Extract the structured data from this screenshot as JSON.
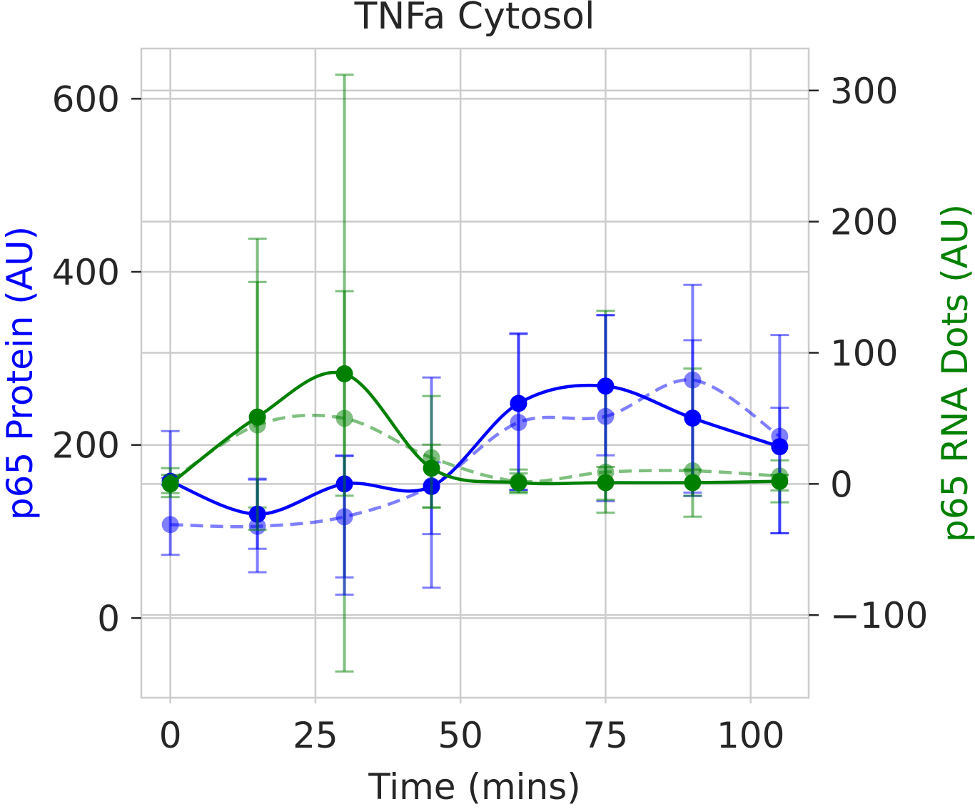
{
  "chart_data": {
    "type": "line",
    "title": "TNFa Cytosol",
    "xlabel": "Time (mins)",
    "ylabel_left": "p65 Protein (AU)",
    "ylabel_right": "p65 RNA Dots (AU)",
    "xlim": [
      -5,
      110
    ],
    "ylim_left": [
      -92,
      658
    ],
    "ylim_right": [
      -163,
      332
    ],
    "x_ticks": [
      0,
      25,
      50,
      75,
      100
    ],
    "y_ticks_left": [
      0,
      200,
      400,
      600
    ],
    "y_ticks_right": [
      -100,
      0,
      100,
      200,
      300
    ],
    "y_tick_labels_right": [
      "−100",
      "0",
      "100",
      "200",
      "300"
    ],
    "grid": true,
    "colors": {
      "protein": "#0000ff",
      "rna": "#008000",
      "grid": "#cccccc",
      "spine": "#cccccc",
      "text": "#262626"
    },
    "x": [
      0,
      15,
      30,
      45,
      60,
      75,
      90,
      105
    ],
    "series": [
      {
        "axis": "left",
        "color": "#0000ff",
        "style": "solid",
        "values": [
          158,
          120,
          155,
          152,
          248,
          268,
          231,
          198
        ],
        "yerr_low": [
          4,
          40,
          128,
          55,
          100,
          80,
          90,
          100
        ],
        "yerr_high": [
          4,
          40,
          33,
          28,
          80,
          82,
          90,
          45
        ]
      },
      {
        "axis": "left",
        "color": "#0000ff",
        "style": "dashed",
        "values": [
          108,
          106,
          117,
          153,
          226,
          233,
          275,
          210
        ],
        "yerr_low": [
          35,
          53,
          70,
          118,
          78,
          98,
          130,
          112
        ],
        "yerr_high": [
          108,
          55,
          70,
          125,
          103,
          117,
          110,
          117
        ]
      },
      {
        "axis": "right",
        "color": "#008000",
        "style": "solid",
        "values": [
          0,
          51,
          84,
          12,
          1,
          1,
          1,
          2
        ],
        "yerr_low": [
          7,
          86,
          93,
          30,
          7,
          13,
          10,
          7
        ],
        "yerr_high": [
          7,
          103,
          63,
          18,
          7,
          12,
          10,
          5
        ]
      },
      {
        "axis": "right",
        "color": "#008000",
        "style": "dashed",
        "values": [
          2,
          45,
          50,
          20,
          2,
          9,
          10,
          6
        ],
        "yerr_low": [
          12,
          63,
          193,
          38,
          9,
          31,
          35,
          20
        ],
        "yerr_high": [
          10,
          142,
          262,
          47,
          9,
          123,
          78,
          12
        ]
      }
    ]
  }
}
